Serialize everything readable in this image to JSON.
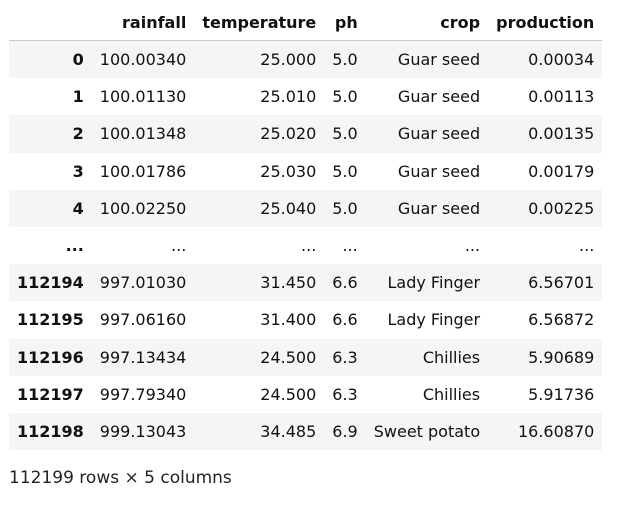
{
  "table": {
    "columns": [
      "",
      "rainfall",
      "temperature",
      "ph",
      "crop",
      "production"
    ],
    "rows": [
      {
        "index": "0",
        "rainfall": "100.00340",
        "temperature": "25.000",
        "ph": "5.0",
        "crop": "Guar seed",
        "production": "0.00034"
      },
      {
        "index": "1",
        "rainfall": "100.01130",
        "temperature": "25.010",
        "ph": "5.0",
        "crop": "Guar seed",
        "production": "0.00113"
      },
      {
        "index": "2",
        "rainfall": "100.01348",
        "temperature": "25.020",
        "ph": "5.0",
        "crop": "Guar seed",
        "production": "0.00135"
      },
      {
        "index": "3",
        "rainfall": "100.01786",
        "temperature": "25.030",
        "ph": "5.0",
        "crop": "Guar seed",
        "production": "0.00179"
      },
      {
        "index": "4",
        "rainfall": "100.02250",
        "temperature": "25.040",
        "ph": "5.0",
        "crop": "Guar seed",
        "production": "0.00225"
      },
      {
        "index": "...",
        "rainfall": "...",
        "temperature": "...",
        "ph": "...",
        "crop": "...",
        "production": "..."
      },
      {
        "index": "112194",
        "rainfall": "997.01030",
        "temperature": "31.450",
        "ph": "6.6",
        "crop": "Lady Finger",
        "production": "6.56701"
      },
      {
        "index": "112195",
        "rainfall": "997.06160",
        "temperature": "31.400",
        "ph": "6.6",
        "crop": "Lady Finger",
        "production": "6.56872"
      },
      {
        "index": "112196",
        "rainfall": "997.13434",
        "temperature": "24.500",
        "ph": "6.3",
        "crop": "Chillies",
        "production": "5.90689"
      },
      {
        "index": "112197",
        "rainfall": "997.79340",
        "temperature": "24.500",
        "ph": "6.3",
        "crop": "Chillies",
        "production": "5.91736"
      },
      {
        "index": "112198",
        "rainfall": "999.13043",
        "temperature": "34.485",
        "ph": "6.9",
        "crop": "Sweet potato",
        "production": "16.60870"
      }
    ]
  },
  "summary": "112199 rows × 5 columns"
}
